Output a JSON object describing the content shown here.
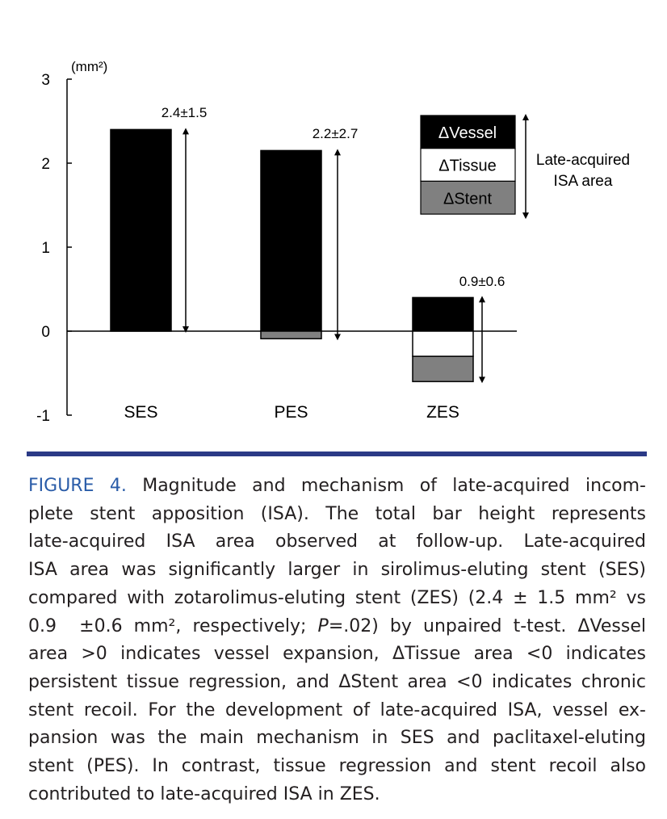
{
  "chart_data": {
    "type": "bar",
    "stacked": true,
    "unit_label": "(mm²)",
    "ylim": [
      -1,
      3
    ],
    "yticks": [
      "3",
      "2",
      "1",
      "0",
      "-1"
    ],
    "grid": false,
    "categories": [
      "SES",
      "PES",
      "ZES"
    ],
    "series": [
      {
        "name": "ΔVessel",
        "color": "#000000",
        "values": [
          2.4,
          2.15,
          0.4
        ]
      },
      {
        "name": "ΔTissue",
        "color": "#ffffff",
        "values": [
          0,
          0,
          -0.3
        ]
      },
      {
        "name": "ΔStent",
        "color": "#808080",
        "values": [
          0,
          -0.09,
          -0.3
        ]
      }
    ],
    "annotations": [
      "2.4±1.5",
      "2.2±2.7",
      "0.9±0.6"
    ],
    "legend_bracket_label": [
      "Late-acquired",
      "ISA area"
    ],
    "legend_placement": "top-right"
  },
  "caption": {
    "figure_label": "FIGURE 4.",
    "line1_rest": " Magnitude and mechanism of late-acquired incom-",
    "lines": [
      "plete stent apposition (ISA). The total bar height represents",
      "late-acquired ISA area observed at follow-up. Late-acquired",
      "ISA area was significantly larger in sirolimus-eluting stent (SES)",
      "compared with zotarolimus-eluting stent (ZES) (2.4 ± 1.5 mm² vs"
    ],
    "line6_a": "0.9  ±0.6 mm², respectively; ",
    "line6_p": "P",
    "line6_b": "=.02) by unpaired t-test. ΔVessel",
    "lines_after": [
      "area >0 indicates vessel expansion, ΔTissue area <0 indicates",
      "persistent tissue regression, and ΔStent area <0 indicates chronic",
      "stent recoil. For the development of late-acquired ISA, vessel ex-",
      "pansion was the main mechanism in SES and paclitaxel-eluting",
      "stent (PES). In contrast, tissue regression and stent recoil also",
      "contributed to late-acquired ISA in ZES."
    ]
  }
}
